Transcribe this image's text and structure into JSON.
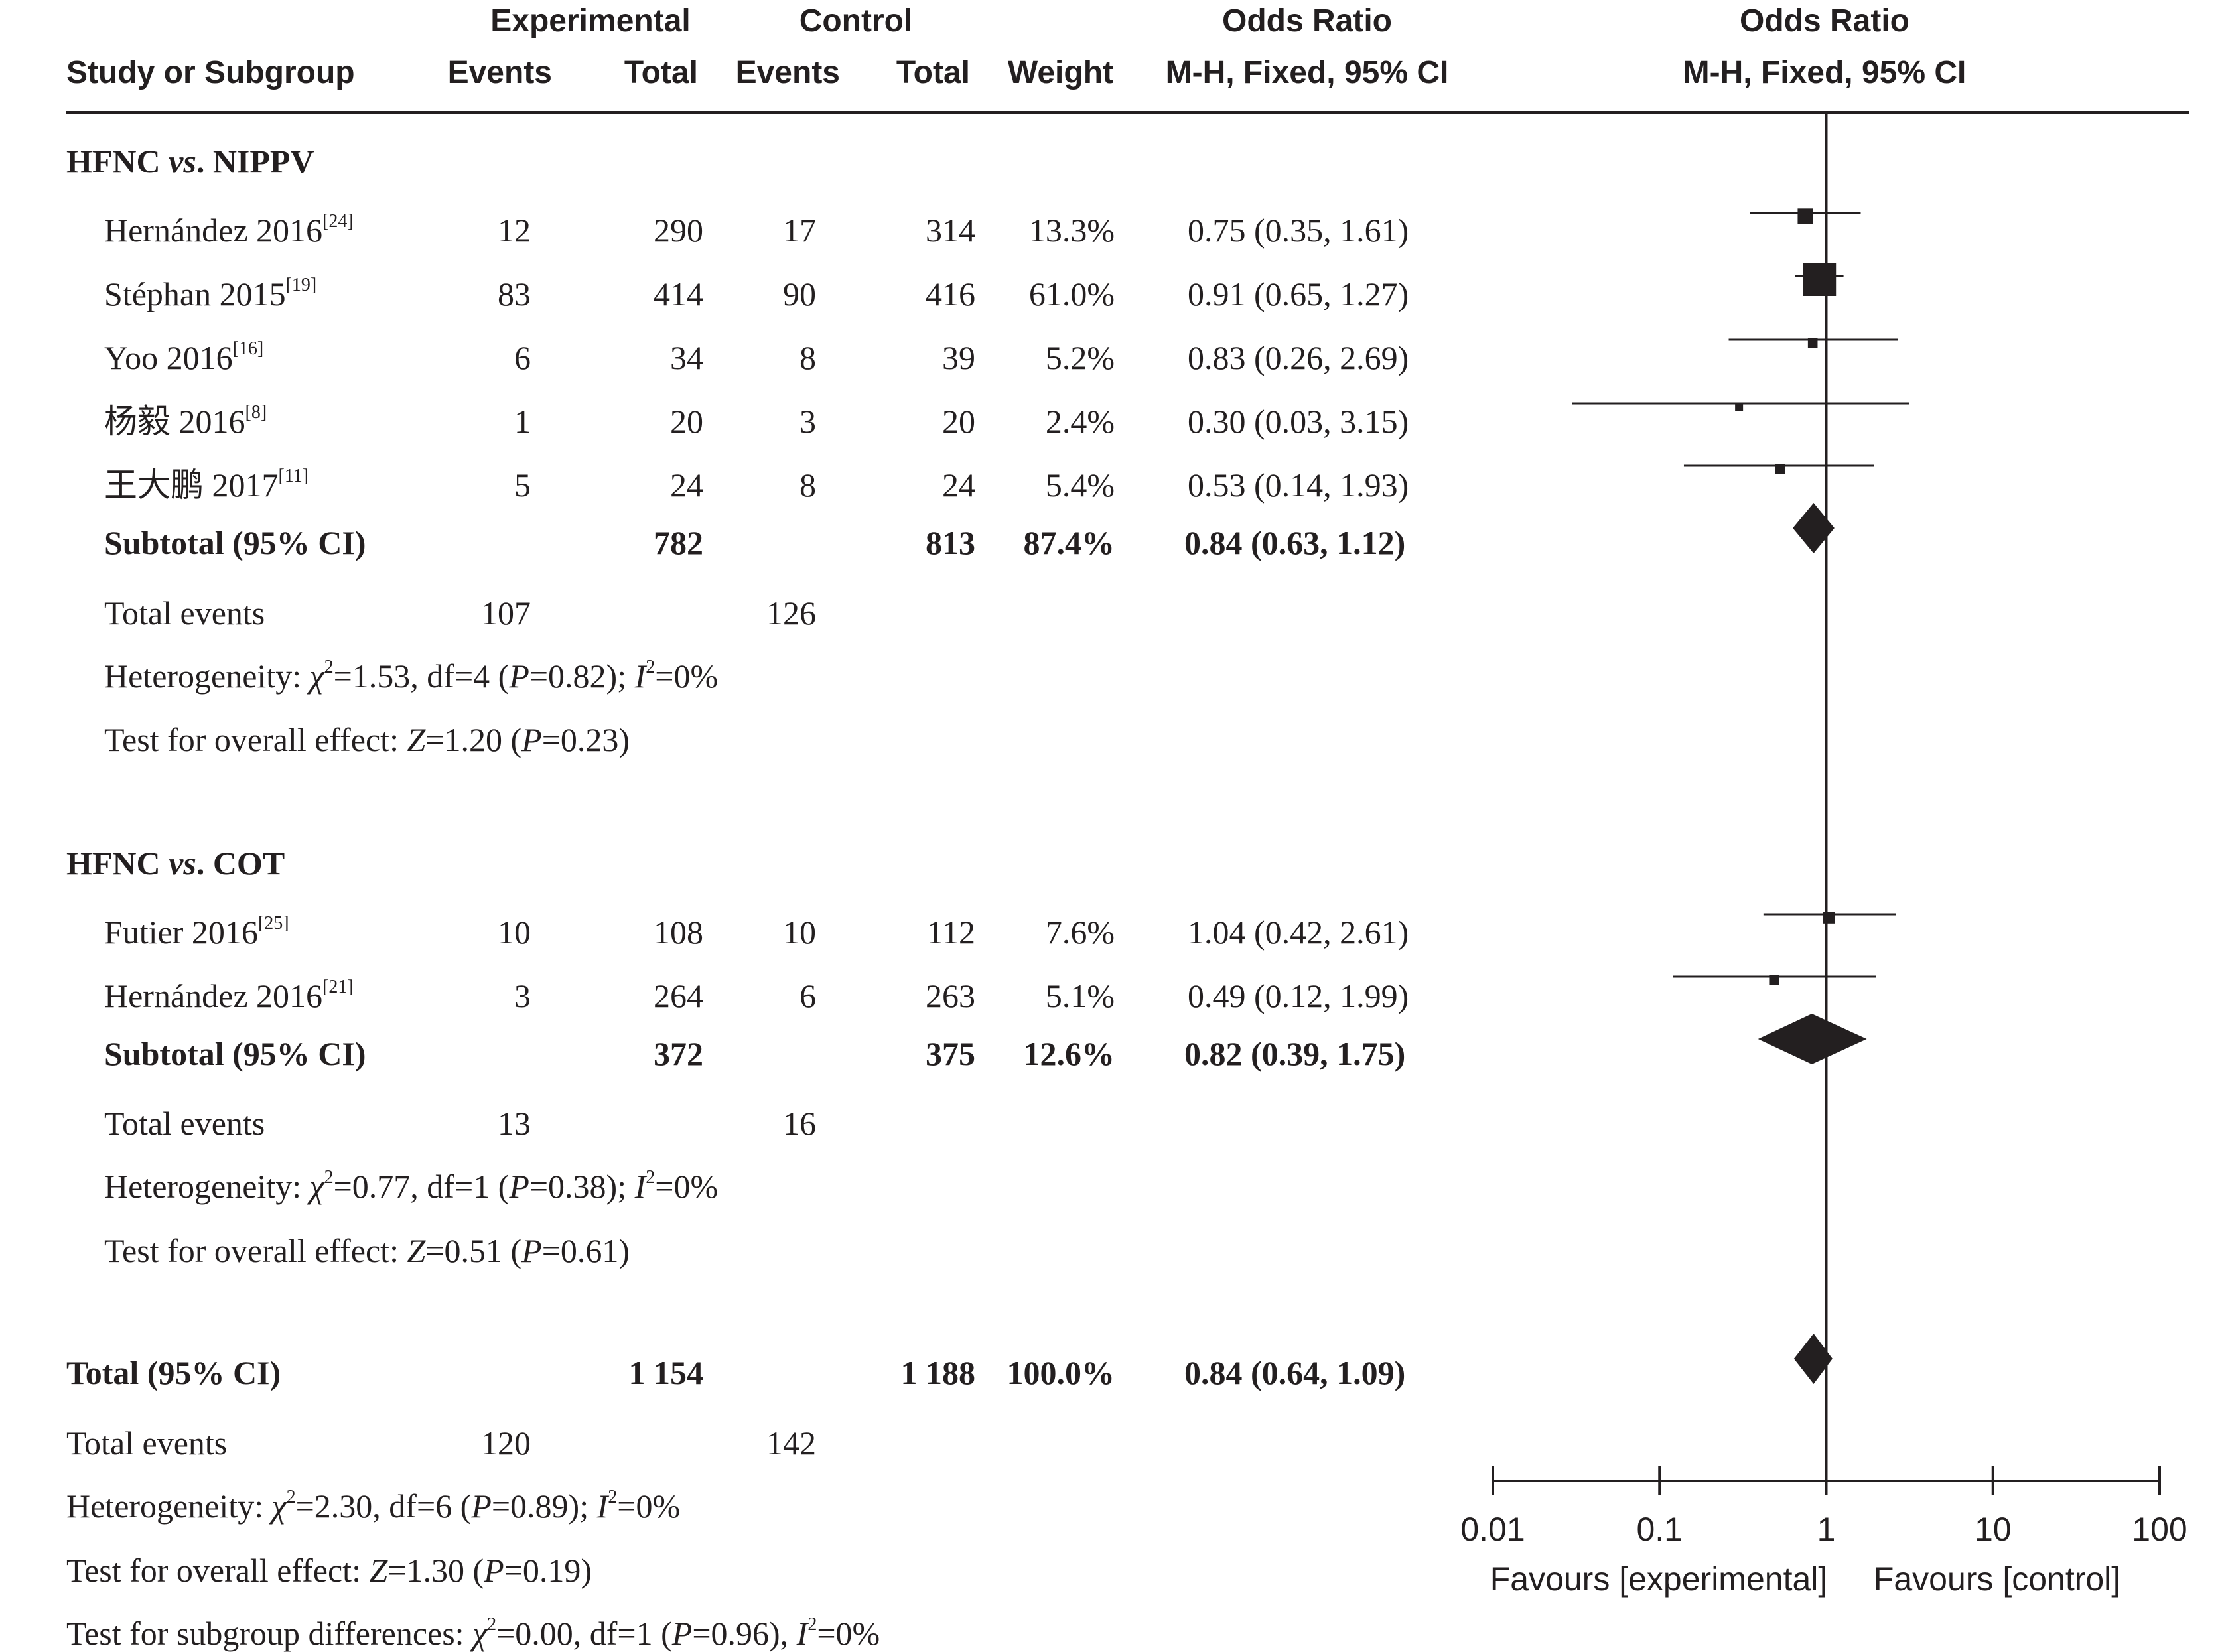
{
  "header": {
    "group_experimental": "Experimental",
    "group_control": "Control",
    "group_or_left": "Odds Ratio",
    "group_or_right": "Odds Ratio",
    "col_study": "Study or Subgroup",
    "col_exp_events": "Events",
    "col_exp_total": "Total",
    "col_ctl_events": "Events",
    "col_ctl_total": "Total",
    "col_weight": "Weight",
    "col_or_method_left": "M-H, Fixed, 95% CI",
    "col_or_method_right": "M-H, Fixed, 95% CI"
  },
  "subgroups": [
    {
      "title_a": "HFNC ",
      "title_vs": "vs",
      "title_b": ". NIPPV",
      "studies": [
        {
          "name": "Hernández 2016",
          "ref": "[24]",
          "exp_events": "12",
          "exp_total": "290",
          "ctl_events": "17",
          "ctl_total": "314",
          "weight": "13.3%",
          "or_text": "0.75 (0.35, 1.61)"
        },
        {
          "name": "Stéphan 2015",
          "ref": "[19]",
          "exp_events": "83",
          "exp_total": "414",
          "ctl_events": "90",
          "ctl_total": "416",
          "weight": "61.0%",
          "or_text": "0.91 (0.65, 1.27)"
        },
        {
          "name": "Yoo 2016",
          "ref": "[16]",
          "exp_events": "6",
          "exp_total": "34",
          "ctl_events": "8",
          "ctl_total": "39",
          "weight": "5.2%",
          "or_text": "0.83 (0.26, 2.69)"
        },
        {
          "name": "杨毅 2016",
          "ref": "[8]",
          "exp_events": "1",
          "exp_total": "20",
          "ctl_events": "3",
          "ctl_total": "20",
          "weight": "2.4%",
          "or_text": "0.30 (0.03, 3.15)"
        },
        {
          "name": "王大鹏 2017",
          "ref": "[11]",
          "exp_events": "5",
          "exp_total": "24",
          "ctl_events": "8",
          "ctl_total": "24",
          "weight": "5.4%",
          "or_text": "0.53 (0.14, 1.93)"
        }
      ],
      "subtotal": {
        "label": "Subtotal (95% CI)",
        "exp_total": "782",
        "ctl_total": "813",
        "weight": "87.4%",
        "or_text": "0.84 (0.63, 1.12)"
      },
      "total_events_label": "Total events",
      "total_events_exp": "107",
      "total_events_ctl": "126",
      "het_prefix": "Heterogeneity: ",
      "het_chi": "χ",
      "het_chi_sup": "2",
      "het_mid": "=1.53, df=4 (",
      "het_p": "P",
      "het_mid2": "=0.82); ",
      "het_i": "I",
      "het_i_sup": "2",
      "het_end": "=0%",
      "test_prefix": "Test for overall effect: ",
      "test_z": "Z",
      "test_mid": "=1.20 (",
      "test_p": "P",
      "test_end": "=0.23)"
    },
    {
      "title_a": "HFNC ",
      "title_vs": "vs",
      "title_b": ". COT",
      "studies": [
        {
          "name": "Futier 2016",
          "ref": "[25]",
          "exp_events": "10",
          "exp_total": "108",
          "ctl_events": "10",
          "ctl_total": "112",
          "weight": "7.6%",
          "or_text": "1.04 (0.42, 2.61)"
        },
        {
          "name": "Hernández 2016",
          "ref": "[21]",
          "exp_events": "3",
          "exp_total": "264",
          "ctl_events": "6",
          "ctl_total": "263",
          "weight": "5.1%",
          "or_text": "0.49 (0.12, 1.99)"
        }
      ],
      "subtotal": {
        "label": "Subtotal (95% CI)",
        "exp_total": "372",
        "ctl_total": "375",
        "weight": "12.6%",
        "or_text": "0.82 (0.39, 1.75)"
      },
      "total_events_label": "Total events",
      "total_events_exp": "13",
      "total_events_ctl": "16",
      "het_prefix": "Heterogeneity: ",
      "het_chi": "χ",
      "het_chi_sup": "2",
      "het_mid": "=0.77, df=1 (",
      "het_p": "P",
      "het_mid2": "=0.38); ",
      "het_i": "I",
      "het_i_sup": "2",
      "het_end": "=0%",
      "test_prefix": "Test for overall effect: ",
      "test_z": "Z",
      "test_mid": "=0.51 (",
      "test_p": "P",
      "test_end": "=0.61)"
    }
  ],
  "overall": {
    "label": "Total (95% CI)",
    "exp_total": "1 154",
    "ctl_total": "1 188",
    "weight": "100.0%",
    "or_text": "0.84 (0.64, 1.09)",
    "total_events_label": "Total events",
    "total_events_exp": "120",
    "total_events_ctl": "142",
    "het_prefix": "Heterogeneity: ",
    "het_chi": "χ",
    "het_chi_sup": "2",
    "het_mid": "=2.30, df=6 (",
    "het_p": "P",
    "het_mid2": "=0.89); ",
    "het_i": "I",
    "het_i_sup": "2",
    "het_end": "=0%",
    "test_prefix": "Test for overall effect: ",
    "test_z": "Z",
    "test_mid": "=1.30 (",
    "test_p": "P",
    "test_end": "=0.19)",
    "sub_prefix": "Test for subgroup differences: ",
    "sub_chi": "χ",
    "sub_chi_sup": "2",
    "sub_mid": "=0.00, df=1 (",
    "sub_p": "P",
    "sub_mid2": "=0.96), ",
    "sub_i": "I",
    "sub_i_sup": "2",
    "sub_end": "=0%"
  },
  "axis": {
    "favours_left": "Favours [experimental]",
    "favours_right": "Favours [control]"
  },
  "colors": {
    "ink": "#231f20",
    "background": "#ffffff"
  },
  "chart_data": {
    "type": "forest",
    "xscale": "log",
    "xlim": [
      0.01,
      100
    ],
    "xticks": [
      0.01,
      0.1,
      1,
      10,
      100
    ],
    "xtick_labels": [
      "0.01",
      "0.1",
      "1",
      "10",
      "100"
    ],
    "reference_line": 1,
    "studies": [
      {
        "study": "Hernández 2016",
        "or": 0.75,
        "lo": 0.35,
        "hi": 1.61,
        "weight": 13.3
      },
      {
        "study": "Stéphan 2015",
        "or": 0.91,
        "lo": 0.65,
        "hi": 1.27,
        "weight": 61.0
      },
      {
        "study": "Yoo 2016",
        "or": 0.83,
        "lo": 0.26,
        "hi": 2.69,
        "weight": 5.2
      },
      {
        "study": "杨毅 2016",
        "or": 0.3,
        "lo": 0.03,
        "hi": 3.15,
        "weight": 2.4
      },
      {
        "study": "王大鹏 2017",
        "or": 0.53,
        "lo": 0.14,
        "hi": 1.93,
        "weight": 5.4
      },
      {
        "study": "Futier 2016",
        "or": 1.04,
        "lo": 0.42,
        "hi": 2.61,
        "weight": 7.6
      },
      {
        "study": "Hernández 2016",
        "or": 0.49,
        "lo": 0.12,
        "hi": 1.99,
        "weight": 5.1
      }
    ],
    "summaries": [
      {
        "label": "Subtotal (95% CI)",
        "or": 0.84,
        "lo": 0.63,
        "hi": 1.12
      },
      {
        "label": "Subtotal (95% CI)",
        "or": 0.82,
        "lo": 0.39,
        "hi": 1.75
      },
      {
        "label": "Total (95% CI)",
        "or": 0.84,
        "lo": 0.64,
        "hi": 1.09
      }
    ]
  }
}
